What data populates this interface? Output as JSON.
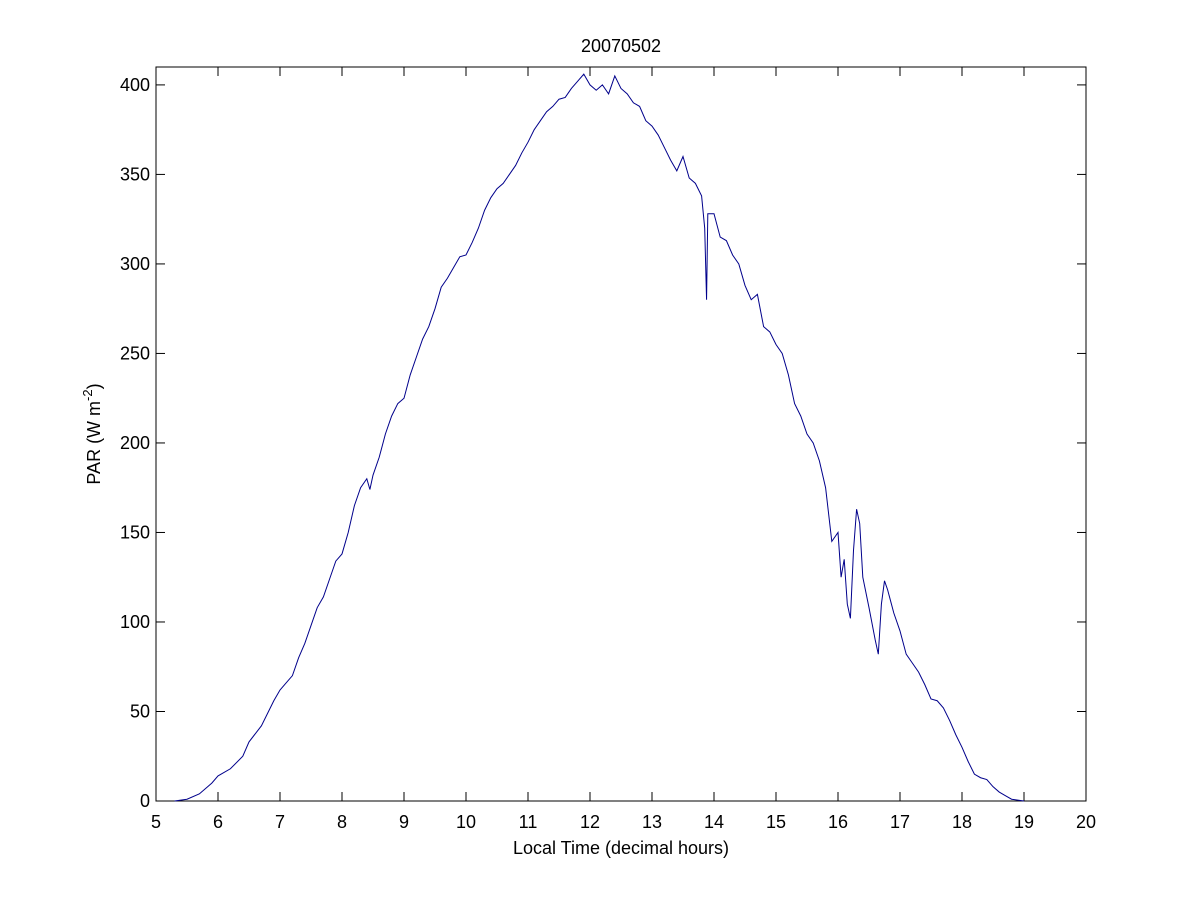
{
  "chart_data": {
    "type": "line",
    "title": "20070502",
    "xlabel": "Local Time (decimal hours)",
    "ylabel": [
      "PAR (W m",
      "-2",
      ")"
    ],
    "xlim": [
      5,
      20
    ],
    "xticks": [
      5,
      6,
      7,
      8,
      9,
      10,
      11,
      12,
      13,
      14,
      15,
      16,
      17,
      18,
      19,
      20
    ],
    "ylim": [
      0,
      410
    ],
    "yticks": [
      0,
      50,
      100,
      150,
      200,
      250,
      300,
      350,
      400
    ],
    "grid": false,
    "series": [
      {
        "color": "#00008b",
        "x": [
          5.3,
          5.5,
          5.7,
          5.9,
          6.0,
          6.2,
          6.4,
          6.5,
          6.7,
          6.9,
          7.0,
          7.1,
          7.2,
          7.3,
          7.4,
          7.5,
          7.6,
          7.7,
          7.8,
          7.9,
          8.0,
          8.1,
          8.2,
          8.3,
          8.4,
          8.45,
          8.5,
          8.6,
          8.7,
          8.8,
          8.9,
          9.0,
          9.1,
          9.2,
          9.3,
          9.4,
          9.5,
          9.6,
          9.7,
          9.8,
          9.9,
          10.0,
          10.1,
          10.2,
          10.3,
          10.4,
          10.5,
          10.6,
          10.7,
          10.8,
          10.9,
          11.0,
          11.1,
          11.2,
          11.3,
          11.4,
          11.5,
          11.6,
          11.7,
          11.8,
          11.9,
          12.0,
          12.1,
          12.2,
          12.3,
          12.4,
          12.5,
          12.6,
          12.7,
          12.8,
          12.9,
          13.0,
          13.1,
          13.2,
          13.3,
          13.4,
          13.5,
          13.6,
          13.7,
          13.8,
          13.85,
          13.88,
          13.9,
          14.0,
          14.1,
          14.2,
          14.3,
          14.4,
          14.5,
          14.6,
          14.7,
          14.8,
          14.9,
          15.0,
          15.1,
          15.2,
          15.3,
          15.4,
          15.5,
          15.6,
          15.7,
          15.8,
          15.9,
          16.0,
          16.05,
          16.1,
          16.15,
          16.2,
          16.25,
          16.3,
          16.35,
          16.4,
          16.5,
          16.6,
          16.65,
          16.7,
          16.75,
          16.8,
          16.9,
          17.0,
          17.1,
          17.2,
          17.3,
          17.4,
          17.5,
          17.6,
          17.7,
          17.8,
          17.9,
          18.0,
          18.1,
          18.2,
          18.3,
          18.4,
          18.5,
          18.6,
          18.7,
          18.8,
          19.0
        ],
        "values": [
          0,
          1,
          4,
          10,
          14,
          18,
          25,
          33,
          42,
          56,
          62,
          66,
          70,
          80,
          88,
          98,
          108,
          114,
          124,
          134,
          138,
          150,
          165,
          175,
          180,
          174,
          182,
          192,
          205,
          215,
          222,
          225,
          238,
          248,
          258,
          265,
          275,
          287,
          292,
          298,
          304,
          305,
          312,
          320,
          330,
          337,
          342,
          345,
          350,
          355,
          362,
          368,
          375,
          380,
          385,
          388,
          392,
          393,
          398,
          402,
          406,
          400,
          397,
          400,
          395,
          405,
          398,
          395,
          390,
          388,
          380,
          377,
          372,
          365,
          358,
          352,
          360,
          348,
          345,
          338,
          320,
          280,
          328,
          328,
          315,
          313,
          305,
          300,
          288,
          280,
          283,
          265,
          262,
          255,
          250,
          238,
          222,
          215,
          205,
          200,
          190,
          175,
          145,
          150,
          125,
          135,
          110,
          102,
          140,
          163,
          155,
          125,
          108,
          90,
          82,
          110,
          123,
          118,
          105,
          95,
          82,
          77,
          72,
          65,
          57,
          56,
          52,
          45,
          37,
          30,
          22,
          15,
          13,
          12,
          8,
          5,
          3,
          1,
          0
        ]
      }
    ]
  }
}
